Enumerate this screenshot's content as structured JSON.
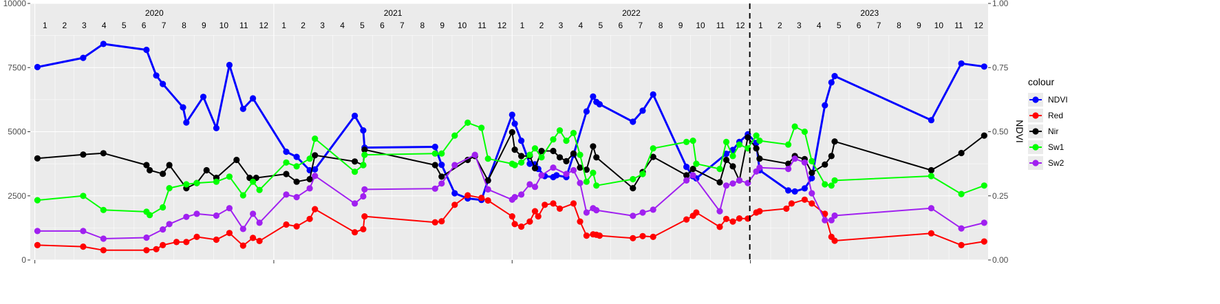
{
  "chart_data": {
    "type": "line",
    "title": "",
    "xlabel": "",
    "ylabel_left": "",
    "ylabel_right": "NDVI",
    "x_type": "date",
    "xlim": [
      "2019-12-25",
      "2023-12-31"
    ],
    "ylim_left": [
      0,
      10000
    ],
    "ylim_right": [
      0,
      1
    ],
    "yticks_left": [
      "0",
      "2500",
      "5000",
      "7500",
      "10000"
    ],
    "yticks_right": [
      "0.00",
      "0.25",
      "0.50",
      "0.75",
      "1.00"
    ],
    "years": [
      "2020",
      "2021",
      "2022",
      "2023"
    ],
    "months": [
      "1",
      "2",
      "3",
      "4",
      "5",
      "6",
      "7",
      "8",
      "9",
      "10",
      "11",
      "12"
    ],
    "vertical_line_date": "2022-12-31",
    "grid": true,
    "legend_title": "colour",
    "legend_position": "right",
    "series": [
      {
        "name": "NDVI",
        "color": "#0000ff",
        "x": [
          "2020-01-05",
          "2020-03-15",
          "2020-04-15",
          "2020-06-20",
          "2020-07-05",
          "2020-07-15",
          "2020-08-15",
          "2020-08-20",
          "2020-09-15",
          "2020-10-05",
          "2020-10-25",
          "2020-11-15",
          "2020-11-30",
          "2021-01-20",
          "2021-02-05",
          "2021-02-25",
          "2021-03-05",
          "2021-05-05",
          "2021-05-18",
          "2021-05-20",
          "2021-09-05",
          "2021-09-15",
          "2021-10-05",
          "2021-10-25",
          "2021-11-15",
          "2021-11-25",
          "2022-01-01",
          "2022-01-05",
          "2022-01-15",
          "2022-01-28",
          "2022-02-05",
          "2022-02-10",
          "2022-02-20",
          "2022-03-05",
          "2022-03-10",
          "2022-03-25",
          "2022-04-05",
          "2022-04-25",
          "2022-05-05",
          "2022-05-10",
          "2022-05-15",
          "2022-07-05",
          "2022-07-20",
          "2022-08-05",
          "2022-09-25",
          "2022-10-05",
          "2022-10-10",
          "2022-11-25",
          "2022-12-05",
          "2022-12-15",
          "2022-12-28",
          "2023-01-10",
          "2023-01-15",
          "2023-02-28",
          "2023-03-10",
          "2023-03-25",
          "2023-04-05",
          "2023-04-25",
          "2023-05-05",
          "2023-05-10",
          "2023-10-05",
          "2023-11-20",
          "2023-12-25"
        ],
        "values": [
          0.752,
          0.788,
          0.842,
          0.819,
          0.719,
          0.686,
          0.595,
          0.536,
          0.636,
          0.514,
          0.76,
          0.589,
          0.63,
          0.422,
          0.402,
          0.35,
          0.353,
          0.562,
          0.505,
          0.438,
          0.441,
          0.371,
          0.26,
          0.24,
          0.234,
          0.31,
          0.566,
          0.531,
          0.465,
          0.375,
          0.373,
          0.355,
          0.327,
          0.323,
          0.33,
          0.323,
          0.41,
          0.579,
          0.637,
          0.616,
          0.607,
          0.539,
          0.582,
          0.645,
          0.363,
          0.326,
          0.318,
          0.414,
          0.429,
          0.46,
          0.49,
          0.456,
          0.35,
          0.271,
          0.267,
          0.279,
          0.319,
          0.603,
          0.692,
          0.717,
          0.545,
          0.766,
          0.754
        ]
      },
      {
        "name": "Red",
        "color": "#ff0000",
        "x": [
          "2020-01-05",
          "2020-03-15",
          "2020-04-15",
          "2020-06-20",
          "2020-07-05",
          "2020-07-15",
          "2020-08-05",
          "2020-08-20",
          "2020-09-05",
          "2020-10-05",
          "2020-10-25",
          "2020-11-15",
          "2020-11-30",
          "2020-12-10",
          "2021-01-20",
          "2021-02-05",
          "2021-02-25",
          "2021-03-05",
          "2021-05-05",
          "2021-05-18",
          "2021-05-20",
          "2021-09-05",
          "2021-09-15",
          "2021-10-05",
          "2021-10-25",
          "2021-11-15",
          "2021-11-25",
          "2022-01-01",
          "2022-01-05",
          "2022-01-15",
          "2022-01-28",
          "2022-02-05",
          "2022-02-10",
          "2022-02-20",
          "2022-03-05",
          "2022-03-15",
          "2022-04-05",
          "2022-04-15",
          "2022-04-25",
          "2022-05-05",
          "2022-05-10",
          "2022-05-15",
          "2022-07-05",
          "2022-07-20",
          "2022-08-05",
          "2022-09-25",
          "2022-10-05",
          "2022-10-10",
          "2022-11-15",
          "2022-11-25",
          "2022-12-05",
          "2022-12-15",
          "2022-12-28",
          "2023-01-10",
          "2023-01-15",
          "2023-02-25",
          "2023-03-05",
          "2023-03-25",
          "2023-04-05",
          "2023-04-25",
          "2023-05-05",
          "2023-05-10",
          "2023-10-05",
          "2023-11-20",
          "2023-12-25"
        ],
        "values": [
          580,
          520,
          380,
          380,
          420,
          580,
          700,
          700,
          900,
          790,
          1050,
          560,
          860,
          740,
          1380,
          1310,
          1600,
          1980,
          1080,
          1200,
          1700,
          1470,
          1510,
          2150,
          2520,
          2420,
          2320,
          1700,
          1400,
          1300,
          1500,
          1900,
          1700,
          2150,
          2200,
          2000,
          2200,
          1500,
          950,
          1000,
          980,
          950,
          850,
          930,
          900,
          1580,
          1720,
          1850,
          1290,
          1600,
          1500,
          1620,
          1610,
          1850,
          1900,
          2000,
          2200,
          2350,
          2200,
          1800,
          900,
          750,
          1040,
          580,
          720
        ]
      },
      {
        "name": "Nir",
        "color": "#000000",
        "x": [
          "2020-01-05",
          "2020-03-15",
          "2020-04-15",
          "2020-06-20",
          "2020-06-25",
          "2020-07-15",
          "2020-07-25",
          "2020-08-20",
          "2020-09-05",
          "2020-09-20",
          "2020-10-05",
          "2020-11-05",
          "2020-11-25",
          "2020-12-05",
          "2021-01-20",
          "2021-02-05",
          "2021-02-25",
          "2021-03-05",
          "2021-05-05",
          "2021-05-18",
          "2021-05-20",
          "2021-09-05",
          "2021-09-15",
          "2021-10-25",
          "2021-11-05",
          "2021-11-25",
          "2022-01-01",
          "2022-01-05",
          "2022-01-15",
          "2022-01-28",
          "2022-02-05",
          "2022-02-15",
          "2022-03-05",
          "2022-03-15",
          "2022-03-25",
          "2022-04-05",
          "2022-04-15",
          "2022-04-25",
          "2022-05-05",
          "2022-05-10",
          "2022-07-05",
          "2022-07-20",
          "2022-08-05",
          "2022-09-25",
          "2022-10-05",
          "2022-11-15",
          "2022-11-25",
          "2022-12-05",
          "2022-12-15",
          "2022-12-28",
          "2023-01-10",
          "2023-01-15",
          "2023-02-28",
          "2023-03-10",
          "2023-03-25",
          "2023-04-05",
          "2023-04-25",
          "2023-05-05",
          "2023-05-10",
          "2023-10-05",
          "2023-11-20",
          "2023-12-25"
        ],
        "values": [
          3960,
          4110,
          4160,
          3700,
          3500,
          3360,
          3700,
          2800,
          3000,
          3500,
          3200,
          3900,
          3200,
          3200,
          3350,
          3050,
          3150,
          4080,
          3840,
          3700,
          4300,
          3700,
          3250,
          3900,
          4050,
          3100,
          4980,
          4300,
          4050,
          4050,
          3580,
          4250,
          4250,
          4000,
          3850,
          4150,
          3600,
          3520,
          4430,
          4000,
          2800,
          3430,
          4020,
          3300,
          3550,
          3030,
          3900,
          3650,
          3100,
          4780,
          4350,
          3950,
          3750,
          4050,
          3930,
          3400,
          3720,
          4050,
          4620,
          3500,
          4170,
          4850
        ]
      },
      {
        "name": "Sw1",
        "color": "#00ff00",
        "x": [
          "2020-01-05",
          "2020-03-15",
          "2020-04-15",
          "2020-06-20",
          "2020-06-25",
          "2020-07-15",
          "2020-07-25",
          "2020-08-20",
          "2020-09-05",
          "2020-10-05",
          "2020-10-25",
          "2020-11-15",
          "2020-11-30",
          "2020-12-10",
          "2021-01-20",
          "2021-02-05",
          "2021-02-25",
          "2021-03-05",
          "2021-05-05",
          "2021-05-18",
          "2021-05-20",
          "2021-09-05",
          "2021-09-15",
          "2021-10-05",
          "2021-10-25",
          "2021-11-15",
          "2021-11-25",
          "2022-01-01",
          "2022-01-05",
          "2022-01-15",
          "2022-01-28",
          "2022-02-05",
          "2022-02-15",
          "2022-03-05",
          "2022-03-15",
          "2022-03-25",
          "2022-04-05",
          "2022-04-15",
          "2022-04-25",
          "2022-05-05",
          "2022-05-10",
          "2022-07-05",
          "2022-07-20",
          "2022-08-05",
          "2022-09-25",
          "2022-10-05",
          "2022-10-10",
          "2022-11-15",
          "2022-11-25",
          "2022-12-05",
          "2022-12-15",
          "2022-12-28",
          "2023-01-10",
          "2023-01-15",
          "2023-02-28",
          "2023-03-10",
          "2023-03-25",
          "2023-04-05",
          "2023-04-25",
          "2023-05-05",
          "2023-05-10",
          "2023-10-05",
          "2023-11-20",
          "2023-12-25"
        ],
        "values": [
          2330,
          2500,
          1950,
          1880,
          1750,
          2050,
          2800,
          2950,
          3000,
          3050,
          3250,
          2520,
          3050,
          2730,
          3800,
          3650,
          3950,
          4730,
          3440,
          3700,
          4100,
          4150,
          4150,
          4850,
          5350,
          5150,
          3950,
          3750,
          3700,
          3800,
          4100,
          4350,
          4000,
          4700,
          5050,
          4650,
          4950,
          4100,
          3050,
          3400,
          2900,
          3150,
          3350,
          4350,
          4600,
          4650,
          3750,
          3550,
          4600,
          4050,
          4500,
          4350,
          4850,
          4650,
          4500,
          5200,
          5000,
          3850,
          2950,
          2900,
          3100,
          3270,
          2570,
          2900
        ]
      },
      {
        "name": "Sw2",
        "color": "#a020f0",
        "x": [
          "2020-01-05",
          "2020-03-15",
          "2020-04-15",
          "2020-06-20",
          "2020-07-15",
          "2020-07-25",
          "2020-08-20",
          "2020-09-05",
          "2020-10-05",
          "2020-10-25",
          "2020-11-15",
          "2020-11-30",
          "2020-12-10",
          "2021-01-20",
          "2021-02-05",
          "2021-02-25",
          "2021-03-05",
          "2021-05-05",
          "2021-05-18",
          "2021-05-20",
          "2021-09-05",
          "2021-09-15",
          "2021-10-05",
          "2021-11-05",
          "2021-11-25",
          "2022-01-01",
          "2022-01-05",
          "2022-01-15",
          "2022-01-28",
          "2022-02-05",
          "2022-02-15",
          "2022-03-05",
          "2022-03-25",
          "2022-04-05",
          "2022-04-15",
          "2022-04-25",
          "2022-05-05",
          "2022-05-10",
          "2022-07-05",
          "2022-07-20",
          "2022-08-05",
          "2022-09-25",
          "2022-10-05",
          "2022-11-15",
          "2022-11-25",
          "2022-12-05",
          "2022-12-15",
          "2022-12-28",
          "2023-01-10",
          "2023-01-15",
          "2023-02-28",
          "2023-03-10",
          "2023-03-25",
          "2023-04-05",
          "2023-04-25",
          "2023-05-05",
          "2023-05-10",
          "2023-10-05",
          "2023-11-20",
          "2023-12-25"
        ],
        "values": [
          1130,
          1130,
          830,
          870,
          1190,
          1400,
          1680,
          1800,
          1730,
          2020,
          1210,
          1800,
          1450,
          2550,
          2450,
          2790,
          3280,
          2200,
          2480,
          2750,
          2780,
          2980,
          3700,
          4100,
          2750,
          2350,
          2450,
          2550,
          2950,
          2850,
          3300,
          3600,
          3350,
          3500,
          3000,
          1850,
          2020,
          1940,
          1720,
          1850,
          1960,
          3100,
          3300,
          1900,
          2900,
          2980,
          3100,
          3000,
          3450,
          3600,
          3550,
          3950,
          3800,
          2600,
          1550,
          1550,
          1730,
          2020,
          1230,
          1450
        ]
      }
    ]
  }
}
